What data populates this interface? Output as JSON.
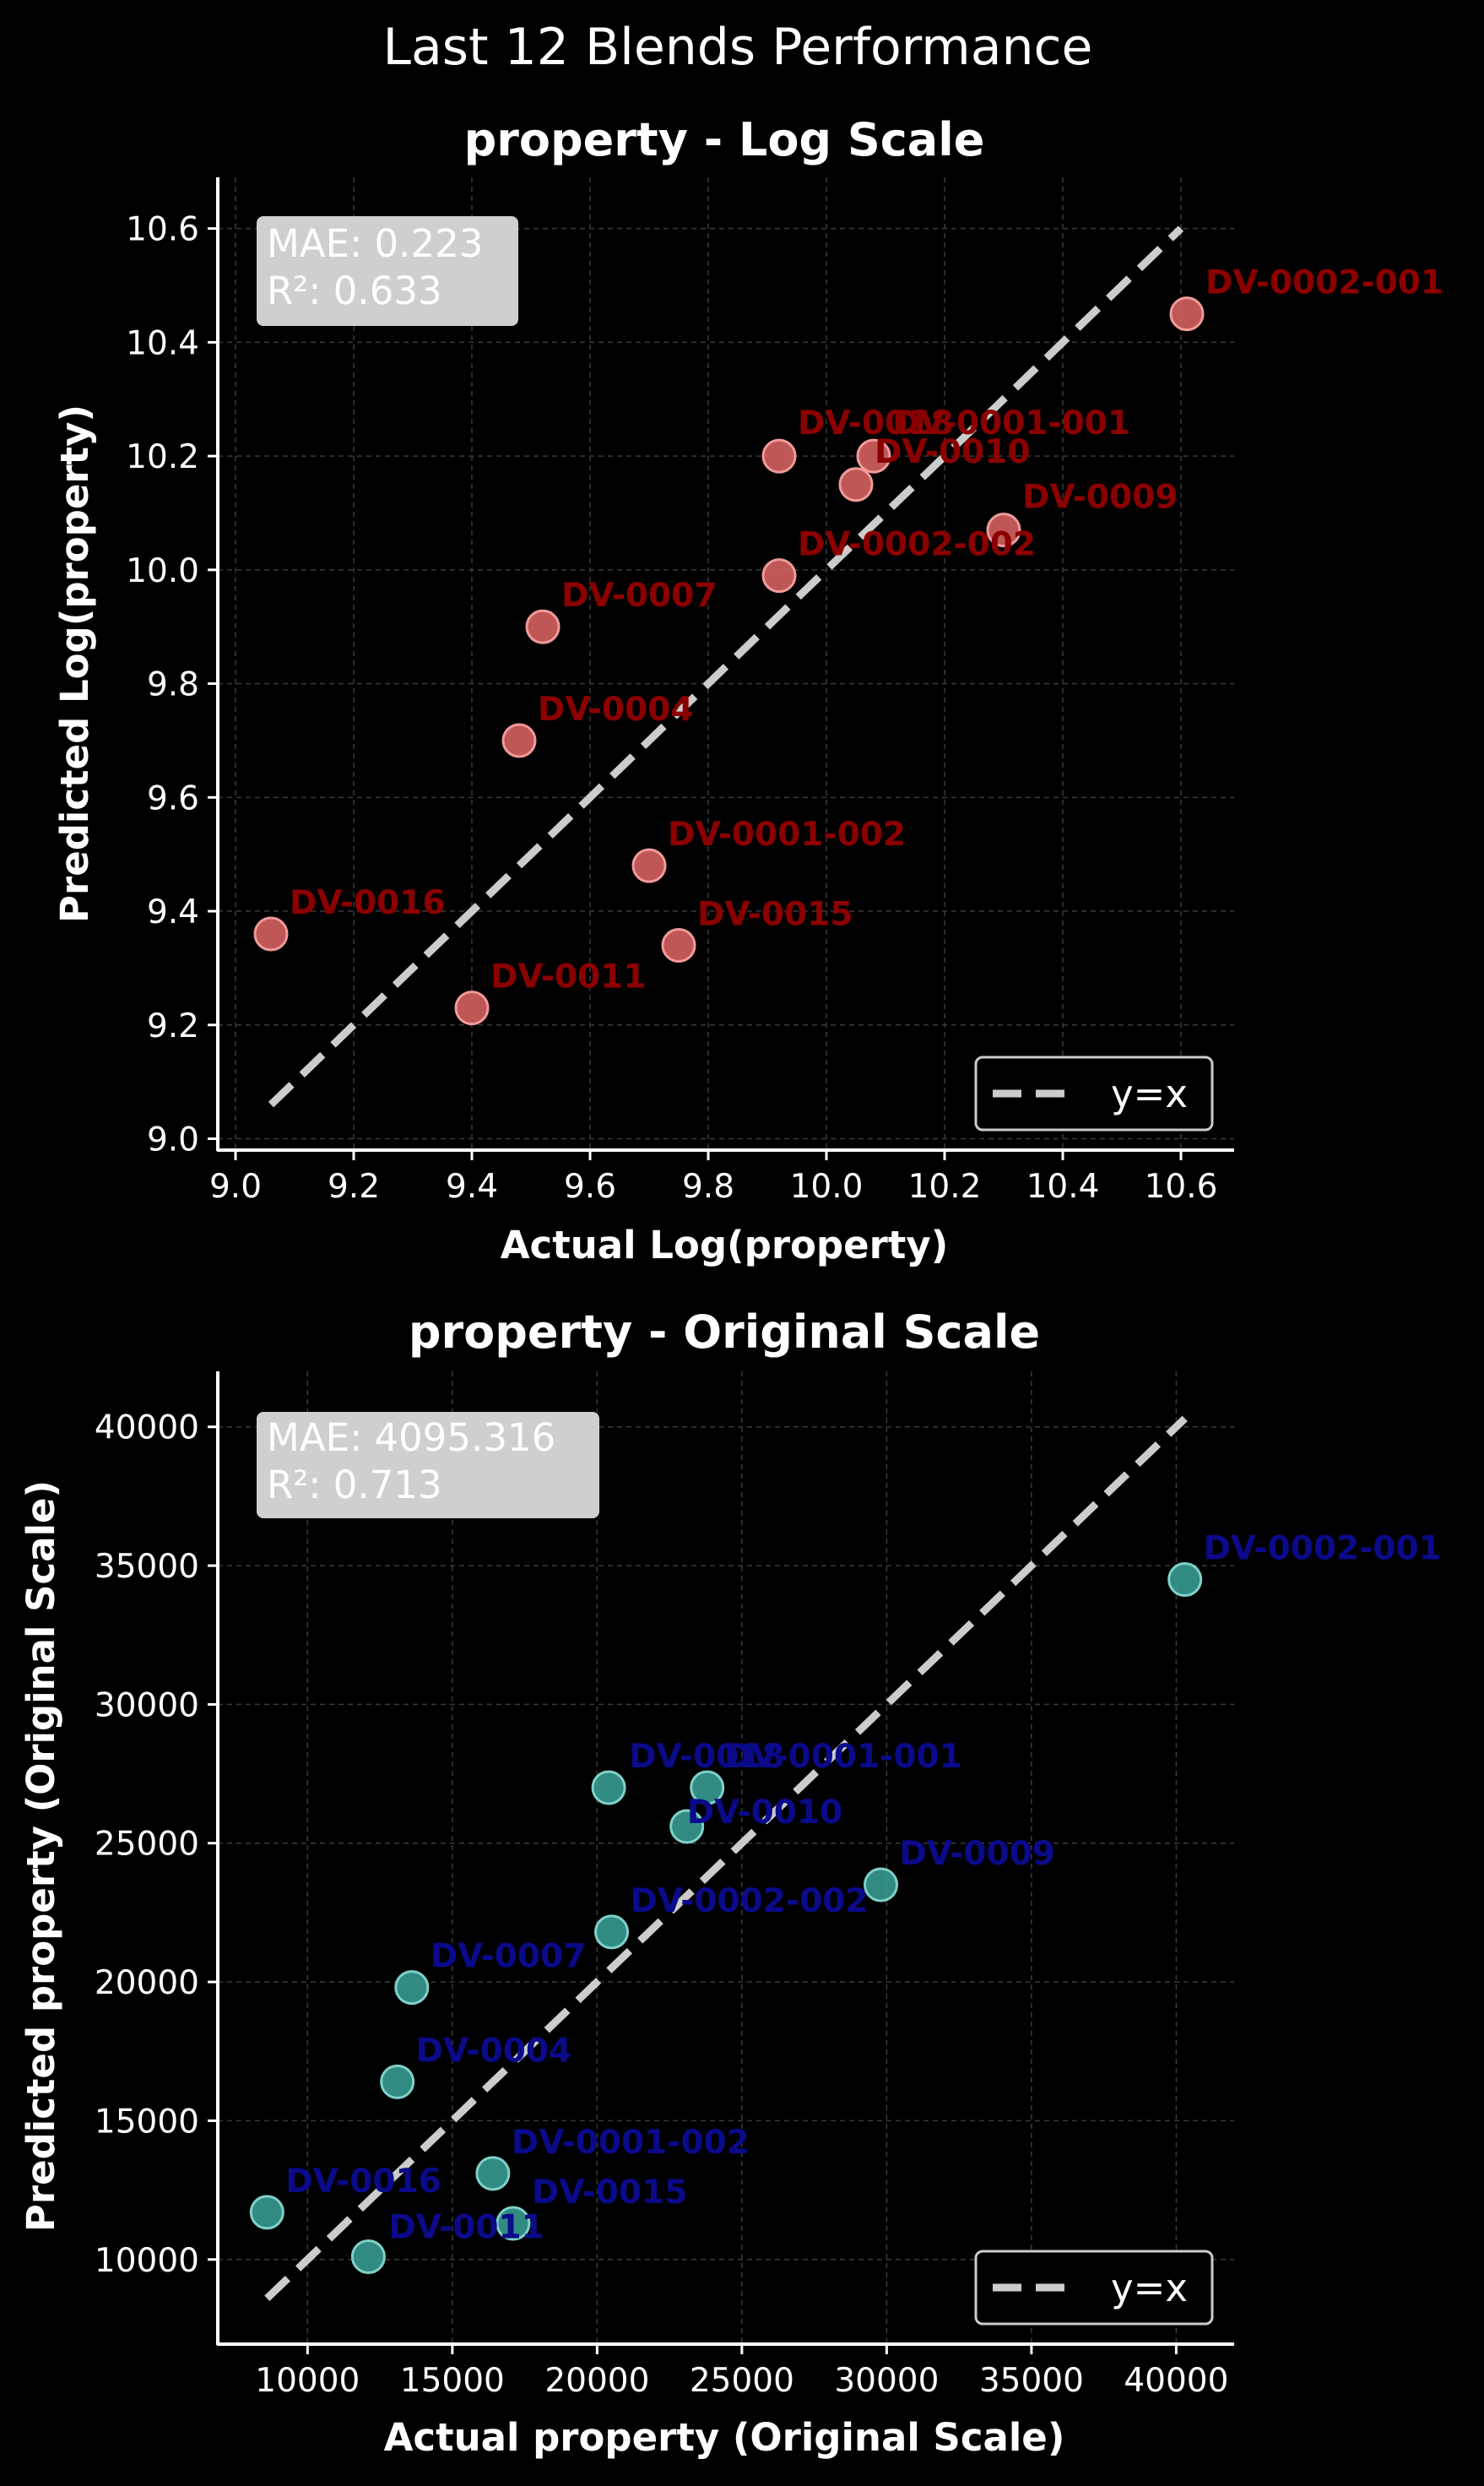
{
  "figure": {
    "suptitle": "Last 12 Blends Performance",
    "background": "#000000"
  },
  "chart_data": [
    {
      "type": "scatter",
      "title": "property - Log Scale",
      "xlabel": "Actual Log(property)",
      "ylabel": "Predicted Log(property)",
      "xlim": [
        8.97,
        10.69
      ],
      "ylim": [
        8.98,
        10.69
      ],
      "xticks": [
        9.0,
        9.2,
        9.4,
        9.6,
        9.8,
        10.0,
        10.2,
        10.4,
        10.6
      ],
      "yticks": [
        9.0,
        9.2,
        9.4,
        9.6,
        9.8,
        10.0,
        10.2,
        10.4,
        10.6
      ],
      "tick_decimals": 1,
      "grid": true,
      "legend": {
        "placement": "bottom-right",
        "entries": [
          "y=x"
        ]
      },
      "stats": {
        "mae": "MAE: 0.223",
        "r2": "R²: 0.633"
      },
      "reference_line": {
        "label": "y=x",
        "from": [
          9.06,
          9.06
        ],
        "to": [
          10.6,
          10.6
        ],
        "color": "#cccccc",
        "style": "dashed"
      },
      "marker_color": "#e06666",
      "marker_edge": "#f19a9a",
      "label_color": "#8b0000",
      "points": [
        {
          "label": "DV-0002-001",
          "x": 10.61,
          "y": 10.45
        },
        {
          "label": "DV-0018",
          "x": 9.92,
          "y": 10.2
        },
        {
          "label": "DV-0001-001",
          "x": 10.08,
          "y": 10.2
        },
        {
          "label": "DV-0010",
          "x": 10.05,
          "y": 10.15
        },
        {
          "label": "DV-0009",
          "x": 10.3,
          "y": 10.07
        },
        {
          "label": "DV-0002-002",
          "x": 9.92,
          "y": 9.99
        },
        {
          "label": "DV-0007",
          "x": 9.52,
          "y": 9.9
        },
        {
          "label": "DV-0004",
          "x": 9.48,
          "y": 9.7
        },
        {
          "label": "DV-0001-002",
          "x": 9.7,
          "y": 9.48
        },
        {
          "label": "DV-0016",
          "x": 9.06,
          "y": 9.36
        },
        {
          "label": "DV-0015",
          "x": 9.75,
          "y": 9.34
        },
        {
          "label": "DV-0011",
          "x": 9.4,
          "y": 9.23
        }
      ]
    },
    {
      "type": "scatter",
      "title": "property - Original Scale",
      "xlabel": "Actual property (Original Scale)",
      "ylabel": "Predicted property (Original Scale)",
      "xlim": [
        6900,
        42000
      ],
      "ylim": [
        6950,
        42000
      ],
      "xticks": [
        10000,
        15000,
        20000,
        25000,
        30000,
        35000,
        40000
      ],
      "yticks": [
        10000,
        15000,
        20000,
        25000,
        30000,
        35000,
        40000
      ],
      "tick_decimals": 0,
      "grid": true,
      "legend": {
        "placement": "bottom-right",
        "entries": [
          "y=x"
        ]
      },
      "stats": {
        "mae": "MAE: 4095.316",
        "r2": "R²: 0.713"
      },
      "reference_line": {
        "label": "y=x",
        "from": [
          8600,
          8600
        ],
        "to": [
          40300,
          40300
        ],
        "color": "#cccccc",
        "style": "dashed"
      },
      "marker_color": "#3aa39a",
      "marker_edge": "#7fd1c8",
      "label_color": "#0a0a8a",
      "points": [
        {
          "label": "DV-0002-001",
          "x": 40300,
          "y": 34500
        },
        {
          "label": "DV-0018",
          "x": 20400,
          "y": 27000
        },
        {
          "label": "DV-0001-001",
          "x": 23800,
          "y": 27000
        },
        {
          "label": "DV-0010",
          "x": 23100,
          "y": 25600
        },
        {
          "label": "DV-0009",
          "x": 29800,
          "y": 23500
        },
        {
          "label": "DV-0002-002",
          "x": 20500,
          "y": 21800
        },
        {
          "label": "DV-0007",
          "x": 13600,
          "y": 19800
        },
        {
          "label": "DV-0004",
          "x": 13100,
          "y": 16400
        },
        {
          "label": "DV-0001-002",
          "x": 16400,
          "y": 13100
        },
        {
          "label": "DV-0016",
          "x": 8600,
          "y": 11700
        },
        {
          "label": "DV-0015",
          "x": 17100,
          "y": 11300
        },
        {
          "label": "DV-0011",
          "x": 12100,
          "y": 10100
        }
      ]
    }
  ]
}
